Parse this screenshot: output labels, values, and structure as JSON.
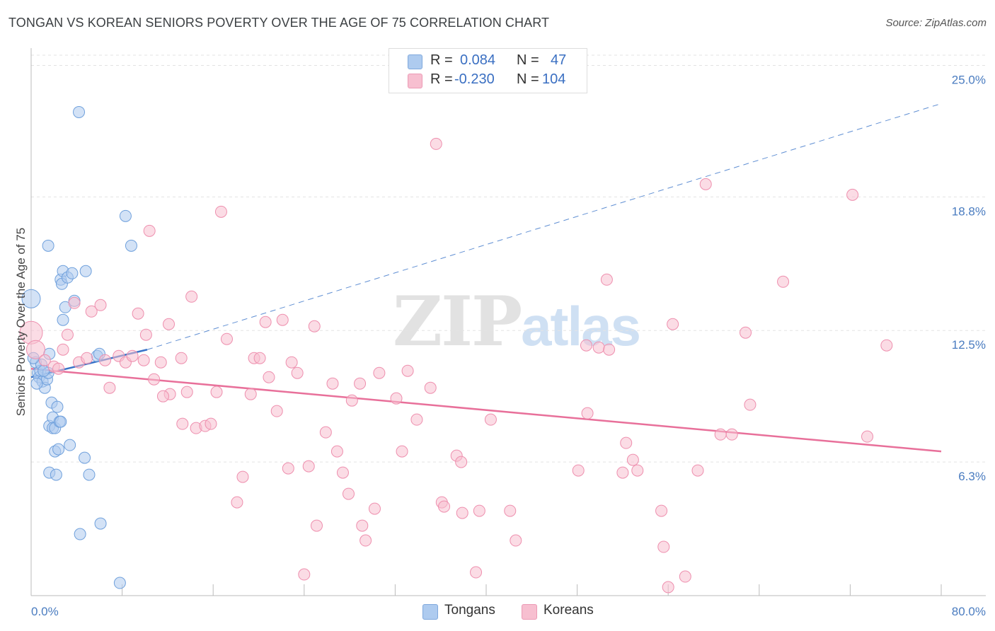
{
  "title": "TONGAN VS KOREAN SENIORS POVERTY OVER THE AGE OF 75 CORRELATION CHART",
  "source": "Source: ZipAtlas.com",
  "watermark": {
    "zip": "ZIP",
    "atlas": "atlas"
  },
  "legend": {
    "rows": [
      {
        "r_label": "R =",
        "r_value": "0.084",
        "n_label": "N =",
        "n_value": "47",
        "color": "#aecbef"
      },
      {
        "r_label": "R =",
        "r_value": "-0.230",
        "n_label": "N =",
        "n_value": "104",
        "color": "#f7bfd0"
      }
    ]
  },
  "bottom_legend": {
    "tongans": "Tongans",
    "koreans": "Koreans"
  },
  "chart_data": {
    "type": "scatter",
    "ylabel": "Seniors Poverty Over the Age of 75",
    "xlabel": "",
    "xlim": [
      0,
      80
    ],
    "ylim": [
      0,
      25.75
    ],
    "x_ticks": {
      "min_label": "0.0%",
      "max_label": "80.0%"
    },
    "y_ticks": [
      {
        "value": 6.3,
        "label": "6.3%"
      },
      {
        "value": 12.5,
        "label": "12.5%"
      },
      {
        "value": 18.8,
        "label": "18.8%"
      },
      {
        "value": 25.0,
        "label": "25.0%"
      }
    ],
    "grid": true,
    "series": [
      {
        "name": "Tongans",
        "color": "#6fa0dc",
        "fill": "#aecbef",
        "trend": {
          "x0": 0,
          "y0": 10.3,
          "x1": 10.2,
          "y1": 11.6,
          "dash_to_x": 80,
          "dash_to_y": 23.2,
          "color": "#3873c8"
        },
        "points": [
          [
            0.0,
            14.0
          ],
          [
            0.4,
            11.0
          ],
          [
            0.6,
            10.5
          ],
          [
            0.7,
            10.3
          ],
          [
            0.8,
            10.6
          ],
          [
            0.9,
            10.9
          ],
          [
            1.0,
            10.1
          ],
          [
            1.2,
            9.8
          ],
          [
            1.4,
            10.2
          ],
          [
            1.5,
            10.5
          ],
          [
            1.6,
            11.4
          ],
          [
            1.5,
            16.5
          ],
          [
            1.6,
            8.0
          ],
          [
            1.6,
            5.8
          ],
          [
            1.8,
            9.1
          ],
          [
            1.9,
            8.4
          ],
          [
            1.9,
            7.9
          ],
          [
            2.1,
            7.9
          ],
          [
            2.1,
            6.8
          ],
          [
            2.2,
            5.7
          ],
          [
            2.3,
            8.9
          ],
          [
            2.4,
            6.9
          ],
          [
            2.5,
            8.2
          ],
          [
            2.6,
            8.2
          ],
          [
            2.8,
            13.0
          ],
          [
            2.6,
            14.9
          ],
          [
            2.7,
            14.7
          ],
          [
            2.8,
            15.3
          ],
          [
            3.0,
            13.6
          ],
          [
            3.2,
            15.0
          ],
          [
            3.4,
            7.1
          ],
          [
            3.6,
            15.2
          ],
          [
            3.8,
            13.9
          ],
          [
            4.2,
            22.8
          ],
          [
            4.3,
            2.9
          ],
          [
            4.7,
            6.5
          ],
          [
            4.8,
            15.3
          ],
          [
            5.1,
            5.7
          ],
          [
            5.8,
            11.3
          ],
          [
            6.0,
            11.4
          ],
          [
            6.1,
            3.4
          ],
          [
            7.8,
            0.6
          ],
          [
            8.3,
            17.9
          ],
          [
            8.8,
            16.5
          ],
          [
            0.2,
            11.2
          ],
          [
            0.5,
            10.0
          ],
          [
            1.1,
            10.6
          ]
        ]
      },
      {
        "name": "Koreans",
        "color": "#ee8fae",
        "fill": "#f7bfd0",
        "trend": {
          "x0": 0,
          "y0": 10.7,
          "x1": 80,
          "y1": 6.8,
          "color": "#e8709a"
        },
        "points": [
          [
            0.0,
            12.4
          ],
          [
            0.4,
            11.6
          ],
          [
            1.2,
            11.1
          ],
          [
            2.0,
            10.8
          ],
          [
            2.8,
            11.6
          ],
          [
            3.2,
            12.3
          ],
          [
            3.8,
            13.8
          ],
          [
            4.2,
            11.0
          ],
          [
            4.9,
            11.2
          ],
          [
            5.3,
            13.4
          ],
          [
            6.1,
            13.7
          ],
          [
            6.9,
            9.8
          ],
          [
            7.7,
            11.3
          ],
          [
            8.3,
            11.0
          ],
          [
            8.9,
            11.3
          ],
          [
            9.4,
            13.3
          ],
          [
            9.9,
            11.1
          ],
          [
            10.4,
            17.2
          ],
          [
            10.8,
            10.2
          ],
          [
            11.4,
            11.0
          ],
          [
            12.1,
            12.8
          ],
          [
            12.2,
            9.5
          ],
          [
            13.2,
            11.2
          ],
          [
            13.3,
            8.1
          ],
          [
            13.7,
            9.6
          ],
          [
            14.1,
            14.1
          ],
          [
            14.5,
            7.9
          ],
          [
            15.3,
            8.0
          ],
          [
            15.8,
            8.1
          ],
          [
            16.3,
            9.6
          ],
          [
            16.7,
            18.1
          ],
          [
            17.2,
            12.1
          ],
          [
            18.1,
            4.4
          ],
          [
            18.6,
            5.6
          ],
          [
            19.3,
            9.5
          ],
          [
            19.6,
            11.2
          ],
          [
            20.1,
            11.2
          ],
          [
            20.6,
            12.9
          ],
          [
            20.9,
            10.3
          ],
          [
            21.6,
            8.7
          ],
          [
            22.1,
            13.0
          ],
          [
            22.6,
            6.0
          ],
          [
            22.9,
            11.0
          ],
          [
            23.4,
            10.5
          ],
          [
            24.0,
            1.0
          ],
          [
            24.4,
            6.1
          ],
          [
            24.9,
            12.7
          ],
          [
            25.1,
            3.3
          ],
          [
            25.9,
            7.7
          ],
          [
            26.5,
            10.0
          ],
          [
            26.9,
            6.8
          ],
          [
            27.4,
            5.8
          ],
          [
            27.9,
            4.8
          ],
          [
            28.2,
            9.2
          ],
          [
            28.9,
            10.0
          ],
          [
            29.1,
            3.3
          ],
          [
            29.4,
            2.6
          ],
          [
            30.2,
            4.1
          ],
          [
            30.6,
            10.5
          ],
          [
            32.1,
            9.3
          ],
          [
            32.6,
            6.8
          ],
          [
            33.1,
            10.6
          ],
          [
            33.9,
            8.3
          ],
          [
            35.1,
            9.8
          ],
          [
            35.6,
            21.3
          ],
          [
            36.1,
            4.4
          ],
          [
            36.3,
            4.2
          ],
          [
            37.4,
            6.6
          ],
          [
            37.8,
            6.3
          ],
          [
            37.9,
            3.9
          ],
          [
            39.1,
            1.1
          ],
          [
            39.4,
            4.0
          ],
          [
            40.4,
            8.3
          ],
          [
            42.1,
            4.0
          ],
          [
            42.6,
            2.6
          ],
          [
            48.1,
            5.9
          ],
          [
            48.8,
            11.8
          ],
          [
            48.9,
            8.6
          ],
          [
            49.9,
            11.7
          ],
          [
            50.6,
            14.9
          ],
          [
            50.8,
            11.6
          ],
          [
            52.0,
            5.8
          ],
          [
            52.3,
            7.2
          ],
          [
            52.9,
            6.4
          ],
          [
            53.3,
            5.9
          ],
          [
            55.4,
            4.0
          ],
          [
            55.6,
            2.3
          ],
          [
            56.0,
            0.4
          ],
          [
            56.4,
            12.8
          ],
          [
            57.5,
            0.9
          ],
          [
            58.6,
            5.9
          ],
          [
            59.3,
            19.4
          ],
          [
            60.6,
            7.6
          ],
          [
            61.6,
            7.6
          ],
          [
            62.8,
            12.4
          ],
          [
            63.2,
            9.0
          ],
          [
            66.1,
            14.8
          ],
          [
            72.2,
            18.9
          ],
          [
            73.5,
            7.5
          ],
          [
            75.2,
            11.8
          ],
          [
            2.4,
            10.7
          ],
          [
            6.5,
            11.1
          ],
          [
            10.1,
            12.3
          ],
          [
            11.6,
            9.4
          ]
        ]
      }
    ]
  }
}
